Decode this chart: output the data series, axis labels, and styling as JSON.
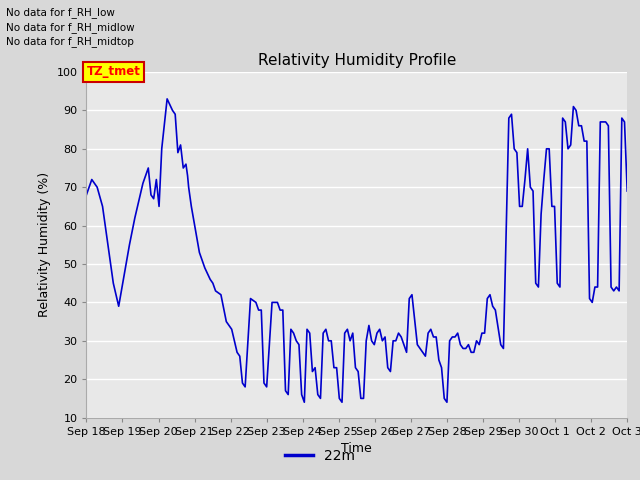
{
  "title": "Relativity Humidity Profile",
  "ylabel": "Relativity Humidity (%)",
  "xlabel": "Time",
  "legend_label": "22m",
  "legend_color": "#0000cc",
  "no_data_texts": [
    "No data for f_RH_low",
    "No data for f_RH_midlow",
    "No data for f_RH_midtop"
  ],
  "tz_label": "TZ_tmet",
  "ylim": [
    10,
    100
  ],
  "yticks": [
    10,
    20,
    30,
    40,
    50,
    60,
    70,
    80,
    90,
    100
  ],
  "line_color": "#0000cc",
  "bg_color": "#d8d8d8",
  "plot_bg_color": "#e8e8e8",
  "grid_color": "#ffffff",
  "x_tick_labels": [
    "Sep 18",
    "Sep 19",
    "Sep 20",
    "Sep 21",
    "Sep 22",
    "Sep 23",
    "Sep 24",
    "Sep 25",
    "Sep 26",
    "Sep 27",
    "Sep 28",
    "Sep 29",
    "Sep 30",
    "Oct 1",
    "Oct 2",
    "Oct 3"
  ],
  "data_points": [
    [
      0,
      68
    ],
    [
      0.1,
      72
    ],
    [
      0.2,
      70
    ],
    [
      0.3,
      65
    ],
    [
      0.5,
      45
    ],
    [
      0.6,
      39
    ],
    [
      0.8,
      55
    ],
    [
      0.9,
      62
    ],
    [
      1.0,
      68
    ],
    [
      1.05,
      71
    ],
    [
      1.1,
      73
    ],
    [
      1.15,
      75
    ],
    [
      1.2,
      68
    ],
    [
      1.25,
      67
    ],
    [
      1.3,
      72
    ],
    [
      1.35,
      65
    ],
    [
      1.4,
      80
    ],
    [
      1.5,
      93
    ],
    [
      1.6,
      90
    ],
    [
      1.65,
      89
    ],
    [
      1.7,
      79
    ],
    [
      1.75,
      81
    ],
    [
      1.8,
      75
    ],
    [
      1.85,
      76
    ],
    [
      1.88,
      73
    ],
    [
      1.9,
      70
    ],
    [
      1.95,
      65
    ],
    [
      2.1,
      53
    ],
    [
      2.2,
      49
    ],
    [
      2.3,
      46
    ],
    [
      2.35,
      45
    ],
    [
      2.4,
      43
    ],
    [
      2.5,
      42
    ],
    [
      2.6,
      35
    ],
    [
      2.7,
      33
    ],
    [
      2.8,
      27
    ],
    [
      2.85,
      26
    ],
    [
      2.9,
      19
    ],
    [
      2.95,
      18
    ],
    [
      3.05,
      41
    ],
    [
      3.15,
      40
    ],
    [
      3.2,
      38
    ],
    [
      3.25,
      38
    ],
    [
      3.3,
      19
    ],
    [
      3.35,
      18
    ],
    [
      3.45,
      40
    ],
    [
      3.55,
      40
    ],
    [
      3.6,
      38
    ],
    [
      3.65,
      38
    ],
    [
      3.7,
      17
    ],
    [
      3.75,
      16
    ],
    [
      3.8,
      33
    ],
    [
      3.85,
      32
    ],
    [
      3.9,
      30
    ],
    [
      3.95,
      29
    ],
    [
      4.0,
      16
    ],
    [
      4.05,
      14
    ],
    [
      4.1,
      33
    ],
    [
      4.15,
      32
    ],
    [
      4.2,
      22
    ],
    [
      4.25,
      23
    ],
    [
      4.3,
      16
    ],
    [
      4.35,
      15
    ],
    [
      4.4,
      32
    ],
    [
      4.45,
      33
    ],
    [
      4.5,
      30
    ],
    [
      4.55,
      30
    ],
    [
      4.6,
      23
    ],
    [
      4.65,
      23
    ],
    [
      4.7,
      15
    ],
    [
      4.75,
      14
    ],
    [
      4.8,
      32
    ],
    [
      4.85,
      33
    ],
    [
      4.9,
      30
    ],
    [
      4.95,
      32
    ],
    [
      5.0,
      23
    ],
    [
      5.05,
      22
    ],
    [
      5.1,
      15
    ],
    [
      5.15,
      15
    ],
    [
      5.2,
      30
    ],
    [
      5.25,
      34
    ],
    [
      5.3,
      30
    ],
    [
      5.35,
      29
    ],
    [
      5.4,
      32
    ],
    [
      5.45,
      33
    ],
    [
      5.5,
      30
    ],
    [
      5.55,
      31
    ],
    [
      5.6,
      23
    ],
    [
      5.65,
      22
    ],
    [
      5.7,
      30
    ],
    [
      5.75,
      30
    ],
    [
      5.8,
      32
    ],
    [
      5.85,
      31
    ],
    [
      5.9,
      29
    ],
    [
      5.95,
      27
    ],
    [
      6.0,
      41
    ],
    [
      6.05,
      42
    ],
    [
      6.15,
      29
    ],
    [
      6.2,
      28
    ],
    [
      6.25,
      27
    ],
    [
      6.3,
      26
    ],
    [
      6.35,
      32
    ],
    [
      6.4,
      33
    ],
    [
      6.45,
      31
    ],
    [
      6.5,
      31
    ],
    [
      6.55,
      25
    ],
    [
      6.6,
      23
    ],
    [
      6.65,
      15
    ],
    [
      6.7,
      14
    ],
    [
      6.75,
      30
    ],
    [
      6.8,
      31
    ],
    [
      6.85,
      31
    ],
    [
      6.9,
      32
    ],
    [
      6.95,
      29
    ],
    [
      7.0,
      28
    ],
    [
      7.05,
      28
    ],
    [
      7.1,
      29
    ],
    [
      7.15,
      27
    ],
    [
      7.2,
      27
    ],
    [
      7.25,
      30
    ],
    [
      7.3,
      29
    ],
    [
      7.35,
      32
    ],
    [
      7.4,
      32
    ],
    [
      7.45,
      41
    ],
    [
      7.5,
      42
    ],
    [
      7.55,
      39
    ],
    [
      7.6,
      38
    ],
    [
      7.7,
      29
    ],
    [
      7.75,
      28
    ],
    [
      7.85,
      88
    ],
    [
      7.9,
      89
    ],
    [
      7.95,
      80
    ],
    [
      8.0,
      79
    ],
    [
      8.05,
      65
    ],
    [
      8.1,
      65
    ],
    [
      8.15,
      72
    ],
    [
      8.2,
      80
    ],
    [
      8.25,
      70
    ],
    [
      8.3,
      69
    ],
    [
      8.35,
      45
    ],
    [
      8.4,
      44
    ],
    [
      8.45,
      63
    ],
    [
      8.5,
      72
    ],
    [
      8.55,
      80
    ],
    [
      8.6,
      80
    ],
    [
      8.65,
      65
    ],
    [
      8.7,
      65
    ],
    [
      8.75,
      45
    ],
    [
      8.8,
      44
    ],
    [
      8.85,
      88
    ],
    [
      8.9,
      87
    ],
    [
      8.95,
      80
    ],
    [
      9.0,
      81
    ],
    [
      9.05,
      91
    ],
    [
      9.1,
      90
    ],
    [
      9.15,
      86
    ],
    [
      9.2,
      86
    ],
    [
      9.25,
      82
    ],
    [
      9.3,
      82
    ],
    [
      9.35,
      41
    ],
    [
      9.4,
      40
    ],
    [
      9.45,
      44
    ],
    [
      9.5,
      44
    ],
    [
      9.55,
      87
    ],
    [
      9.6,
      87
    ],
    [
      9.65,
      87
    ],
    [
      9.7,
      86
    ],
    [
      9.75,
      44
    ],
    [
      9.8,
      43
    ],
    [
      9.85,
      44
    ],
    [
      9.9,
      43
    ],
    [
      9.95,
      88
    ],
    [
      10.0,
      87
    ],
    [
      10.05,
      69
    ]
  ]
}
